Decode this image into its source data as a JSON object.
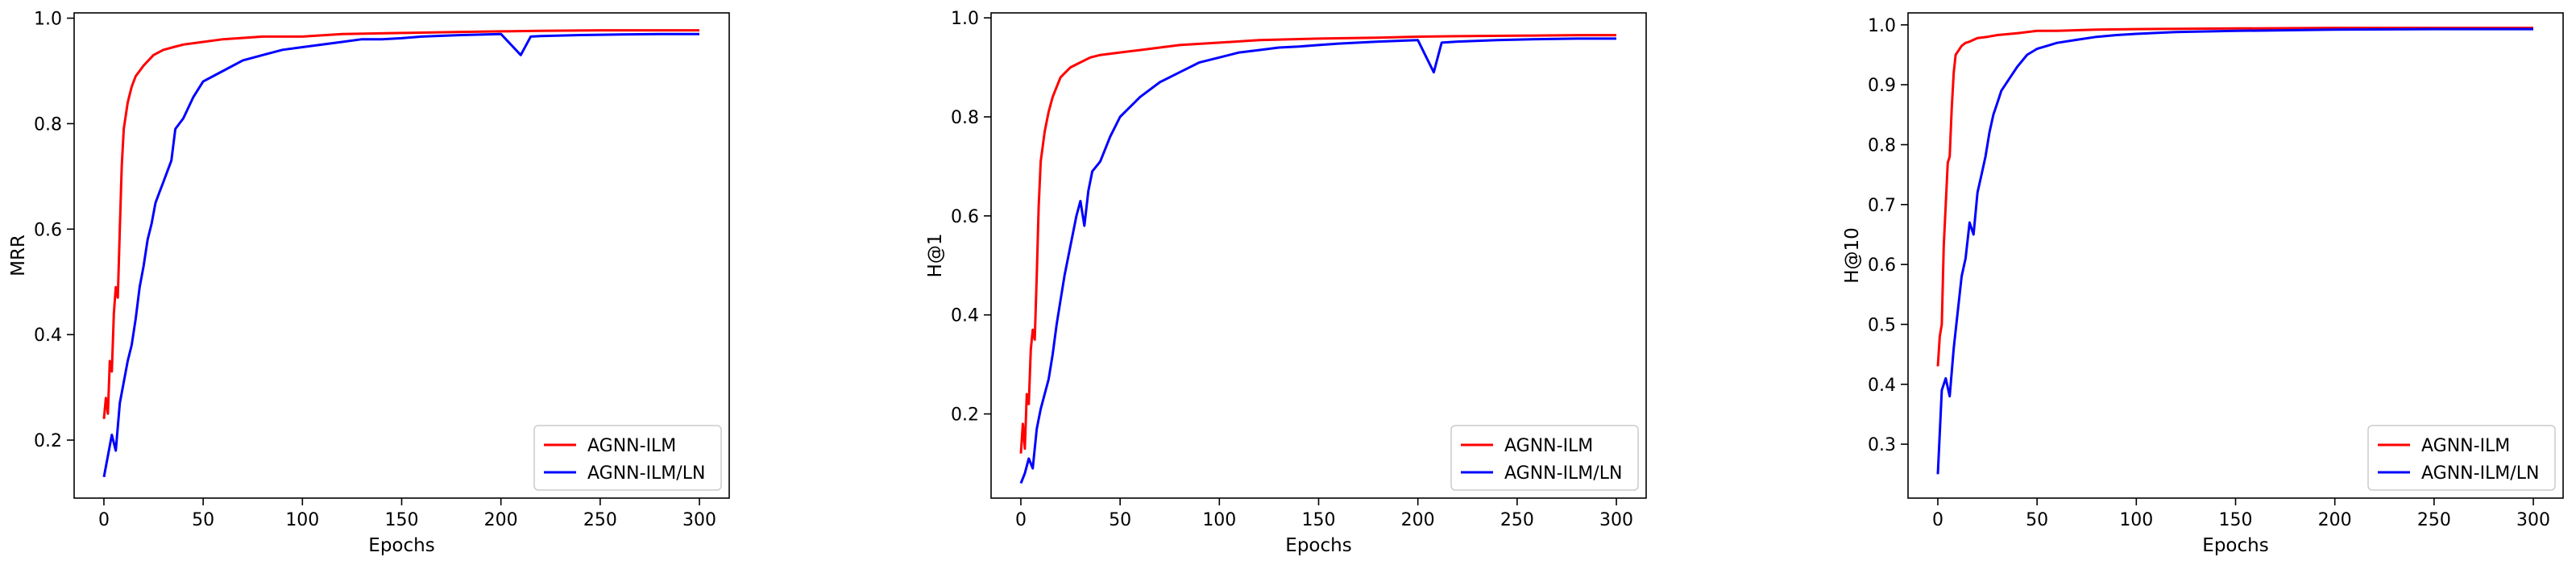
{
  "colors": {
    "agnn_ilm": "#ff0000",
    "agnn_ilm_ln": "#0000ff"
  },
  "chart_data": [
    {
      "type": "line",
      "xlabel": "Epochs",
      "ylabel": "MRR",
      "xlim": [
        -15,
        315
      ],
      "ylim": [
        0.09,
        1.01
      ],
      "xticks": [
        0,
        50,
        100,
        150,
        200,
        250,
        300
      ],
      "yticks": [
        0.2,
        0.4,
        0.6,
        0.8,
        1.0
      ],
      "ytick_labels": [
        "0.2",
        "0.4",
        "0.6",
        "0.8",
        "1.0"
      ],
      "grid": false,
      "legend_position": "lower-right",
      "series": [
        {
          "name": "AGNN-ILM",
          "color": "#ff0000",
          "x": [
            0,
            1,
            2,
            3,
            4,
            5,
            6,
            7,
            8,
            9,
            10,
            12,
            14,
            16,
            18,
            20,
            25,
            30,
            35,
            40,
            50,
            60,
            80,
            100,
            120,
            150,
            180,
            200,
            220,
            250,
            280,
            300
          ],
          "y": [
            0.24,
            0.28,
            0.25,
            0.35,
            0.33,
            0.44,
            0.49,
            0.47,
            0.6,
            0.72,
            0.79,
            0.84,
            0.87,
            0.89,
            0.9,
            0.91,
            0.93,
            0.94,
            0.945,
            0.95,
            0.955,
            0.96,
            0.965,
            0.965,
            0.97,
            0.972,
            0.974,
            0.975,
            0.976,
            0.977,
            0.977,
            0.977
          ]
        },
        {
          "name": "AGNN-ILM/LN",
          "color": "#0000ff",
          "x": [
            0,
            2,
            4,
            6,
            8,
            10,
            12,
            14,
            16,
            18,
            20,
            22,
            24,
            26,
            28,
            30,
            32,
            34,
            36,
            38,
            40,
            45,
            50,
            55,
            60,
            70,
            80,
            90,
            100,
            110,
            120,
            130,
            140,
            150,
            160,
            180,
            200,
            210,
            215,
            220,
            240,
            260,
            280,
            300
          ],
          "y": [
            0.13,
            0.17,
            0.21,
            0.18,
            0.27,
            0.31,
            0.35,
            0.38,
            0.43,
            0.49,
            0.53,
            0.58,
            0.61,
            0.65,
            0.67,
            0.69,
            0.71,
            0.73,
            0.79,
            0.8,
            0.81,
            0.85,
            0.88,
            0.89,
            0.9,
            0.92,
            0.93,
            0.94,
            0.945,
            0.95,
            0.955,
            0.96,
            0.96,
            0.962,
            0.965,
            0.968,
            0.97,
            0.93,
            0.965,
            0.966,
            0.968,
            0.969,
            0.97,
            0.97
          ]
        }
      ]
    },
    {
      "type": "line",
      "xlabel": "Epochs",
      "ylabel": "H@1",
      "xlim": [
        -15,
        315
      ],
      "ylim": [
        0.03,
        1.01
      ],
      "xticks": [
        0,
        50,
        100,
        150,
        200,
        250,
        300
      ],
      "yticks": [
        0.2,
        0.4,
        0.6,
        0.8,
        1.0
      ],
      "ytick_labels": [
        "0.2",
        "0.4",
        "0.6",
        "0.8",
        "1.0"
      ],
      "grid": false,
      "legend_position": "lower-right",
      "series": [
        {
          "name": "AGNN-ILM",
          "color": "#ff0000",
          "x": [
            0,
            1,
            2,
            3,
            4,
            5,
            6,
            7,
            8,
            9,
            10,
            12,
            14,
            16,
            18,
            20,
            25,
            30,
            35,
            40,
            50,
            60,
            80,
            100,
            120,
            150,
            180,
            200,
            220,
            250,
            280,
            300
          ],
          "y": [
            0.12,
            0.18,
            0.13,
            0.24,
            0.22,
            0.33,
            0.37,
            0.35,
            0.48,
            0.62,
            0.71,
            0.77,
            0.81,
            0.84,
            0.86,
            0.88,
            0.9,
            0.91,
            0.92,
            0.925,
            0.93,
            0.935,
            0.945,
            0.95,
            0.955,
            0.958,
            0.96,
            0.962,
            0.963,
            0.964,
            0.965,
            0.965
          ]
        },
        {
          "name": "AGNN-ILM/LN",
          "color": "#0000ff",
          "x": [
            0,
            2,
            4,
            6,
            8,
            10,
            12,
            14,
            16,
            18,
            20,
            22,
            24,
            26,
            28,
            30,
            32,
            34,
            36,
            38,
            40,
            45,
            50,
            55,
            60,
            70,
            80,
            90,
            100,
            110,
            120,
            130,
            140,
            150,
            160,
            180,
            200,
            208,
            212,
            220,
            240,
            260,
            280,
            300
          ],
          "y": [
            0.06,
            0.08,
            0.11,
            0.09,
            0.17,
            0.21,
            0.24,
            0.27,
            0.32,
            0.38,
            0.43,
            0.48,
            0.52,
            0.56,
            0.6,
            0.63,
            0.58,
            0.65,
            0.69,
            0.7,
            0.71,
            0.76,
            0.8,
            0.82,
            0.84,
            0.87,
            0.89,
            0.91,
            0.92,
            0.93,
            0.935,
            0.94,
            0.942,
            0.945,
            0.948,
            0.952,
            0.955,
            0.89,
            0.95,
            0.952,
            0.955,
            0.957,
            0.958,
            0.958
          ]
        }
      ]
    },
    {
      "type": "line",
      "xlabel": "Epochs",
      "ylabel": "H@10",
      "xlim": [
        -15,
        315
      ],
      "ylim": [
        0.21,
        1.02
      ],
      "xticks": [
        0,
        50,
        100,
        150,
        200,
        250,
        300
      ],
      "yticks": [
        0.3,
        0.4,
        0.5,
        0.6,
        0.7,
        0.8,
        0.9,
        1.0
      ],
      "ytick_labels": [
        "0.3",
        "0.4",
        "0.5",
        "0.6",
        "0.7",
        "0.8",
        "0.9",
        "1.0"
      ],
      "grid": false,
      "legend_position": "lower-right",
      "series": [
        {
          "name": "AGNN-ILM",
          "color": "#ff0000",
          "x": [
            0,
            1,
            2,
            3,
            4,
            5,
            6,
            7,
            8,
            9,
            10,
            12,
            14,
            16,
            18,
            20,
            25,
            30,
            40,
            50,
            60,
            80,
            100,
            150,
            200,
            250,
            300
          ],
          "y": [
            0.43,
            0.48,
            0.5,
            0.63,
            0.7,
            0.77,
            0.78,
            0.86,
            0.92,
            0.95,
            0.955,
            0.965,
            0.97,
            0.972,
            0.975,
            0.978,
            0.98,
            0.983,
            0.986,
            0.99,
            0.99,
            0.992,
            0.993,
            0.994,
            0.995,
            0.995,
            0.995
          ]
        },
        {
          "name": "AGNN-ILM/LN",
          "color": "#0000ff",
          "x": [
            0,
            2,
            4,
            6,
            8,
            10,
            12,
            14,
            16,
            18,
            20,
            22,
            24,
            26,
            28,
            30,
            32,
            34,
            36,
            40,
            45,
            50,
            55,
            60,
            70,
            80,
            90,
            100,
            120,
            150,
            200,
            250,
            300
          ],
          "y": [
            0.25,
            0.39,
            0.41,
            0.38,
            0.46,
            0.52,
            0.58,
            0.61,
            0.67,
            0.65,
            0.72,
            0.75,
            0.78,
            0.82,
            0.85,
            0.87,
            0.89,
            0.9,
            0.91,
            0.93,
            0.95,
            0.96,
            0.965,
            0.97,
            0.975,
            0.98,
            0.983,
            0.985,
            0.988,
            0.99,
            0.992,
            0.993,
            0.993
          ]
        }
      ]
    }
  ]
}
